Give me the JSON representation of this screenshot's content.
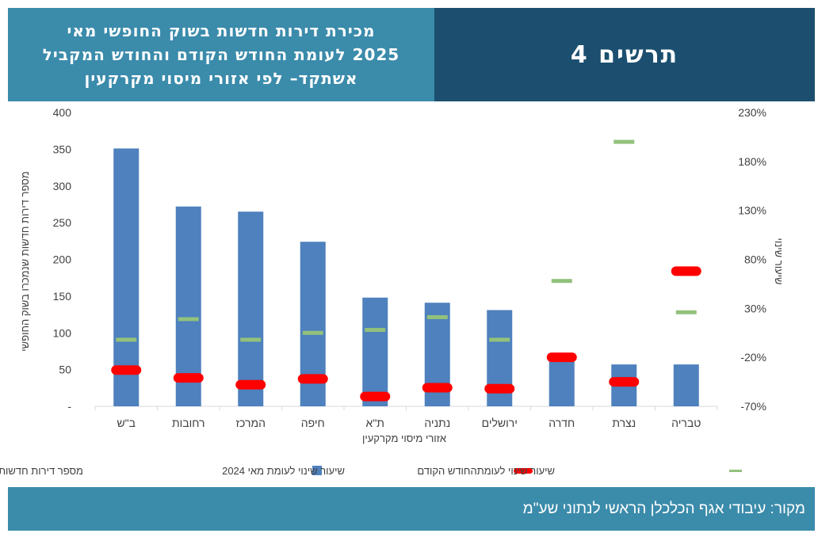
{
  "header": {
    "title_lines": [
      "מכירת דירות חדשות בשוק החופשי מאי",
      "2025 לעומת החודש הקודם והחודש המקביל",
      "אשתקד– לפי אזורי מיסוי מקרקעין"
    ],
    "figure_label": "תרשים 4"
  },
  "footer": {
    "source": "מקור: עיבודי אגף הכלכלן הראשי לנתוני שע\"מ"
  },
  "chart_data": {
    "type": "bar",
    "categories": [
      "ב\"ש",
      "רחובות",
      "המרכז",
      "חיפה",
      "ת\"א",
      "נתניה",
      "ירושלים",
      "חדרה",
      "נצרת",
      "טבריה"
    ],
    "series": [
      {
        "name": "מספר דירות חדשות שנמכרו בשוק החופשי",
        "type": "bar",
        "axis": "left",
        "color": "#4e81bd",
        "values": [
          351,
          272,
          265,
          224,
          148,
          141,
          131,
          68,
          57,
          57
        ]
      },
      {
        "name": "שיעור שינוי לעומת מאי 2024",
        "type": "marker",
        "axis": "right",
        "color": "#ff0000",
        "values": [
          -33,
          -41,
          -48,
          -42,
          -60,
          -51,
          -52,
          -20,
          -45,
          68
        ]
      },
      {
        "name": "שיעור שינוי לעומתהחודש הקודם",
        "type": "marker",
        "axis": "right",
        "color": "#92c17b",
        "values": [
          -2,
          19,
          -2,
          5,
          8,
          21,
          -2,
          58,
          200,
          26
        ]
      }
    ],
    "xlabel": "אזורי מיסוי מקרקעין",
    "ylabel": "מספר דירות חדשות שנמכרו בשוק החופשי",
    "y2label": "שיעור שינוי",
    "ylim": [
      0,
      400
    ],
    "y2lim": [
      -70,
      230
    ],
    "yticks": [
      "-",
      "50",
      "100",
      "150",
      "200",
      "250",
      "300",
      "350",
      "400"
    ],
    "y2ticks": [
      "-70%",
      "-20%",
      "30%",
      "80%",
      "130%",
      "180%",
      "230%"
    ],
    "grid": false,
    "legend": "bottom"
  }
}
